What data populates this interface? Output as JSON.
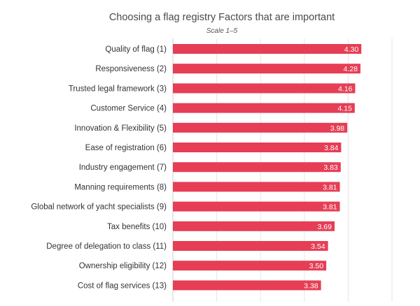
{
  "chart_data": {
    "type": "bar",
    "orientation": "horizontal",
    "title": "Choosing a flag registry Factors that are important",
    "subtitle": "Scale 1–5",
    "categories": [
      "Quality of flag (1)",
      "Responsiveness (2)",
      "Trusted legal framework (3)",
      "Customer Service (4)",
      "Innovation & Flexibility (5)",
      "Ease of registration (6)",
      "Industry engagement (7)",
      "Manning requirements (8)",
      "Global network of yacht specialists (9)",
      "Tax benefits (10)",
      "Degree of delegation to class (11)",
      "Ownership eligibility (12)",
      "Cost of flag services (13)"
    ],
    "values": [
      4.3,
      4.28,
      4.16,
      4.15,
      3.98,
      3.84,
      3.83,
      3.81,
      3.81,
      3.69,
      3.54,
      3.5,
      3.38
    ],
    "value_labels": [
      "4.30",
      "4.28",
      "4.16",
      "4.15",
      "3.98",
      "3.84",
      "3.83",
      "3.81",
      "3.81",
      "3.69",
      "3.54",
      "3.50",
      "3.38"
    ],
    "xlim": [
      0,
      5
    ],
    "grid": true,
    "bar_color": "#e63e55"
  }
}
